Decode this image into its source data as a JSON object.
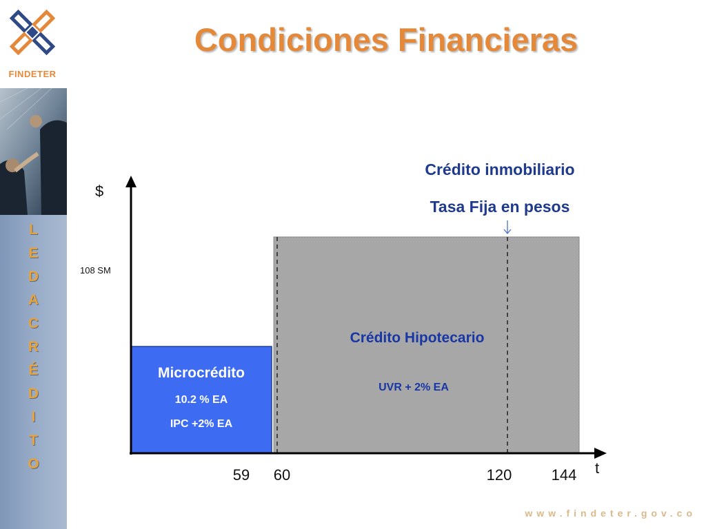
{
  "logo": {
    "brand": "FINDETER",
    "icon": "findeter-logo-icon"
  },
  "sidebar": {
    "vertical_letters": [
      "L",
      "E",
      "D",
      "A",
      "C",
      "R",
      "É",
      "D",
      "I",
      "T",
      "O"
    ]
  },
  "title": "Condiciones Financieras",
  "headings": {
    "line1": "Crédito  inmobiliario",
    "line2": "Tasa Fija en pesos"
  },
  "axes": {
    "y_label": "$",
    "x_label": "t",
    "y_mark": "108 SM"
  },
  "x_ticks": [
    "59",
    "60",
    "120",
    "144"
  ],
  "microcredito": {
    "title": "Microcrédito",
    "rate1": "10.2 % EA",
    "rate2": "IPC +2% EA"
  },
  "hipotecario": {
    "title": "Crédito Hipotecario",
    "rate": "UVR + 2% EA"
  },
  "footer_url": "www.findeter.gov.co",
  "colors": {
    "title": "#e4883a",
    "heading_blue": "#1f3a8c",
    "micro_box": "#3d6cf2",
    "hipo_box": "#a7a7a7",
    "hipo_text": "#1936a6"
  }
}
